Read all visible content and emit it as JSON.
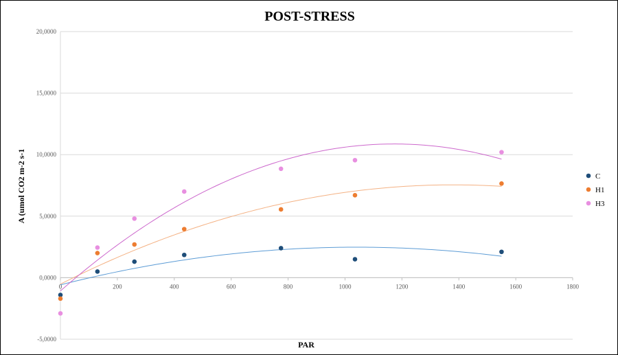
{
  "chart_data": {
    "type": "scatter",
    "title": "POST-STRESS",
    "xlabel": "PAR",
    "ylabel": "A (umol CO2 m-2 s-1",
    "xlim": [
      0,
      1800
    ],
    "ylim": [
      -5,
      20
    ],
    "x_ticks": [
      0,
      200,
      400,
      600,
      800,
      1000,
      1200,
      1400,
      1600,
      1800
    ],
    "x_tick_labels": [
      "0",
      "200",
      "400",
      "600",
      "800",
      "1000",
      "1200",
      "1400",
      "1600",
      "1800"
    ],
    "y_ticks": [
      -5,
      0,
      5,
      10,
      15,
      20
    ],
    "y_tick_labels": [
      "-5,0000",
      "0,0000",
      "5,0000",
      "10,0000",
      "15,0000",
      "20,0000"
    ],
    "grid": "horizontal",
    "legend_position": "right",
    "trendline": "polynomial (order 2)",
    "series": [
      {
        "name": "C",
        "color": "#1f4e79",
        "trend_color": "#5b9bd5",
        "x": [
          0,
          130,
          260,
          435,
          775,
          1035,
          1550
        ],
        "y": [
          -1.4,
          0.5,
          1.3,
          1.85,
          2.4,
          1.5,
          2.1
        ]
      },
      {
        "name": "H1",
        "color": "#ed7d31",
        "trend_color": "#f4b183",
        "x": [
          0,
          130,
          260,
          435,
          775,
          1035,
          1550
        ],
        "y": [
          -1.7,
          2.0,
          2.7,
          3.95,
          5.55,
          6.7,
          7.65
        ]
      },
      {
        "name": "H3",
        "color": "#e88fe0",
        "trend_color": "#cc66cc",
        "x": [
          0,
          130,
          260,
          435,
          775,
          1035,
          1550
        ],
        "y": [
          -2.9,
          2.45,
          4.8,
          7.0,
          8.85,
          9.55,
          10.2
        ]
      }
    ]
  }
}
